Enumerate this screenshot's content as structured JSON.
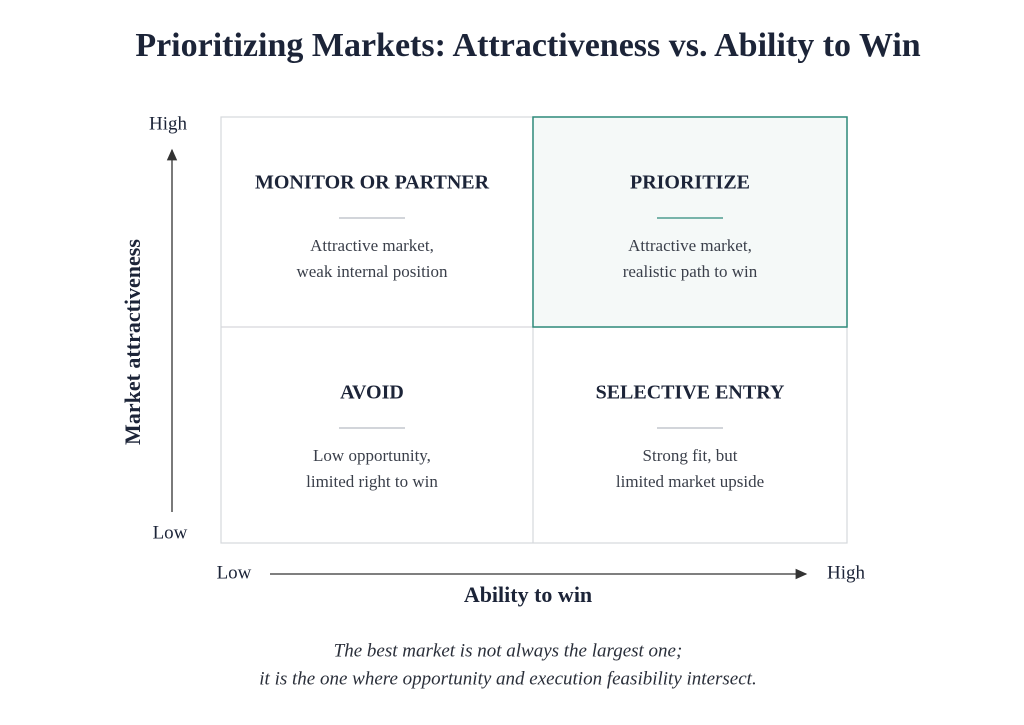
{
  "title": "Prioritizing Markets: Attractiveness vs. Ability to Win",
  "y_axis": {
    "label": "Market attractiveness",
    "high": "High",
    "low": "Low"
  },
  "x_axis": {
    "label": "Ability to win",
    "high": "High",
    "low": "Low"
  },
  "quadrants": [
    {
      "title": "MONITOR OR PARTNER",
      "lines": [
        "Attractive market,",
        "weak internal position"
      ]
    },
    {
      "title": "PRIORITIZE",
      "lines": [
        "Attractive market,",
        "realistic path to win"
      ]
    },
    {
      "title": "AVOID",
      "lines": [
        "Low opportunity,",
        "limited right to win"
      ]
    },
    {
      "title": "SELECTIVE ENTRY",
      "lines": [
        "Strong fit, but",
        "limited market upside"
      ]
    }
  ],
  "caption": [
    "The best market is not always the largest one;",
    "it is the one where opportunity and execution feasibility intersect."
  ]
}
